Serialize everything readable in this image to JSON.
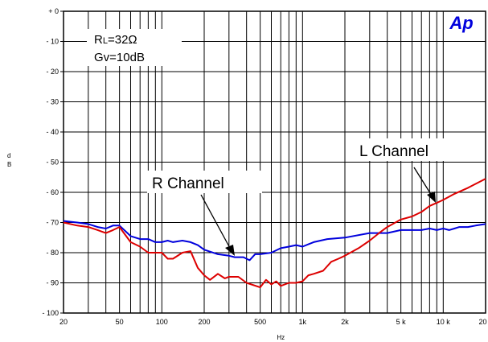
{
  "chart_data": {
    "type": "line",
    "title": "",
    "xlabel": "Hz",
    "ylabel": "dB",
    "x_scale": "log",
    "xlim": [
      20,
      20000
    ],
    "ylim": [
      -100,
      0
    ],
    "grid": true,
    "x_tick_labels": [
      "20",
      "50",
      "100",
      "200",
      "500",
      "1k",
      "2k",
      "5 k",
      "10 k",
      "20 k"
    ],
    "x_tick_values": [
      20,
      50,
      100,
      200,
      500,
      1000,
      2000,
      5000,
      10000,
      20000
    ],
    "y_tick_labels": [
      "+ 0",
      "- 10",
      "- 20",
      "- 30",
      "- 40",
      "- 50",
      "- 60",
      "- 70",
      "- 80",
      "- 90",
      "- 100"
    ],
    "y_tick_values": [
      0,
      -10,
      -20,
      -30,
      -40,
      -50,
      -60,
      -70,
      -80,
      -90,
      -100
    ],
    "conditions": [
      "RL=32Ω",
      "Gv=10dB"
    ],
    "logo": "Ap",
    "series": [
      {
        "name": "R Channel",
        "color": "#0000dd",
        "x": [
          20,
          25,
          30,
          35,
          40,
          45,
          50,
          60,
          70,
          80,
          90,
          100,
          110,
          120,
          140,
          160,
          180,
          200,
          250,
          300,
          330,
          380,
          420,
          460,
          500,
          600,
          700,
          800,
          900,
          1000,
          1200,
          1500,
          2000,
          3000,
          4000,
          5000,
          6000,
          7000,
          8000,
          9000,
          10000,
          11000,
          12000,
          13000,
          15000,
          17000,
          20000
        ],
        "y": [
          -69.5,
          -70,
          -70.5,
          -71.5,
          -72,
          -71,
          -71,
          -74.5,
          -75.5,
          -75.5,
          -76.5,
          -76.5,
          -76,
          -76.5,
          -76,
          -76.5,
          -77.5,
          -79,
          -80.5,
          -81,
          -81.5,
          -81.5,
          -82.5,
          -80.5,
          -80.5,
          -80,
          -78.5,
          -78,
          -77.5,
          -78,
          -76.5,
          -75.5,
          -75,
          -73.5,
          -73.5,
          -72.5,
          -72.5,
          -72.5,
          -72,
          -72.5,
          -72,
          -72.5,
          -72,
          -71.5,
          -71.5,
          -71,
          -70.5
        ]
      },
      {
        "name": "L Channel",
        "color": "#dd0000",
        "x": [
          20,
          25,
          30,
          35,
          40,
          45,
          50,
          60,
          70,
          80,
          90,
          100,
          110,
          120,
          140,
          160,
          180,
          200,
          220,
          250,
          280,
          300,
          350,
          400,
          500,
          550,
          600,
          650,
          700,
          800,
          900,
          1000,
          1100,
          1200,
          1400,
          1600,
          1800,
          2000,
          2500,
          3000,
          3500,
          4000,
          5000,
          6000,
          7000,
          8000,
          9000,
          10000,
          12000,
          15000,
          20000
        ],
        "y": [
          -70,
          -71,
          -71.5,
          -72.5,
          -73.5,
          -72.5,
          -71.5,
          -76.5,
          -78,
          -80,
          -80,
          -80,
          -82,
          -82,
          -80,
          -79.5,
          -85,
          -87.5,
          -89,
          -87,
          -88.5,
          -88,
          -88,
          -90,
          -91.5,
          -89,
          -90.5,
          -89.5,
          -91,
          -90,
          -90,
          -89.5,
          -87.5,
          -87,
          -86,
          -83,
          -82,
          -81,
          -78.5,
          -76,
          -73.5,
          -71.5,
          -69,
          -68,
          -66.5,
          -64.5,
          -63.5,
          -62.5,
          -60.5,
          -58.5,
          -55.5
        ]
      }
    ]
  }
}
